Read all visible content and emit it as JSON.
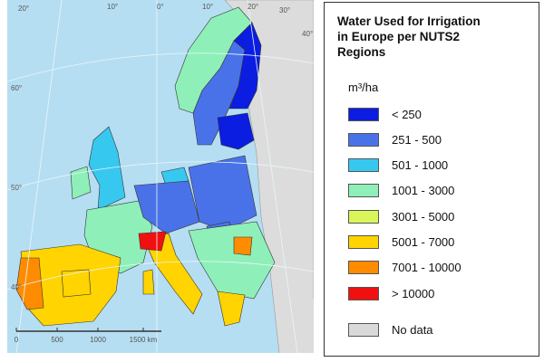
{
  "map": {
    "title_lines": [
      "Water Used for Irrigation",
      "in Europe per NUTS2",
      "Regions"
    ],
    "unit": "m³/ha",
    "legend": [
      {
        "label": "< 250",
        "color": "#0b1de0"
      },
      {
        "label": "251 - 500",
        "color": "#4a72e8"
      },
      {
        "label": "501 - 1000",
        "color": "#37c8f0"
      },
      {
        "label": "1001 - 3000",
        "color": "#8ef0b8"
      },
      {
        "label": "3001 - 5000",
        "color": "#d8f55a"
      },
      {
        "label": "5001 - 7000",
        "color": "#ffd400"
      },
      {
        "label": "7001 - 10000",
        "color": "#ff8c00"
      },
      {
        "label": "> 10000",
        "color": "#f01010"
      }
    ],
    "no_data": {
      "label": "No data",
      "color": "#d9d9d9"
    },
    "scale_labels": [
      "0",
      "500",
      "1000",
      "1500 km"
    ],
    "graticule_labels": [
      "20°",
      "10°",
      "0°",
      "10°",
      "20°",
      "30°",
      "40°",
      "60°",
      "50°",
      "40°"
    ]
  }
}
